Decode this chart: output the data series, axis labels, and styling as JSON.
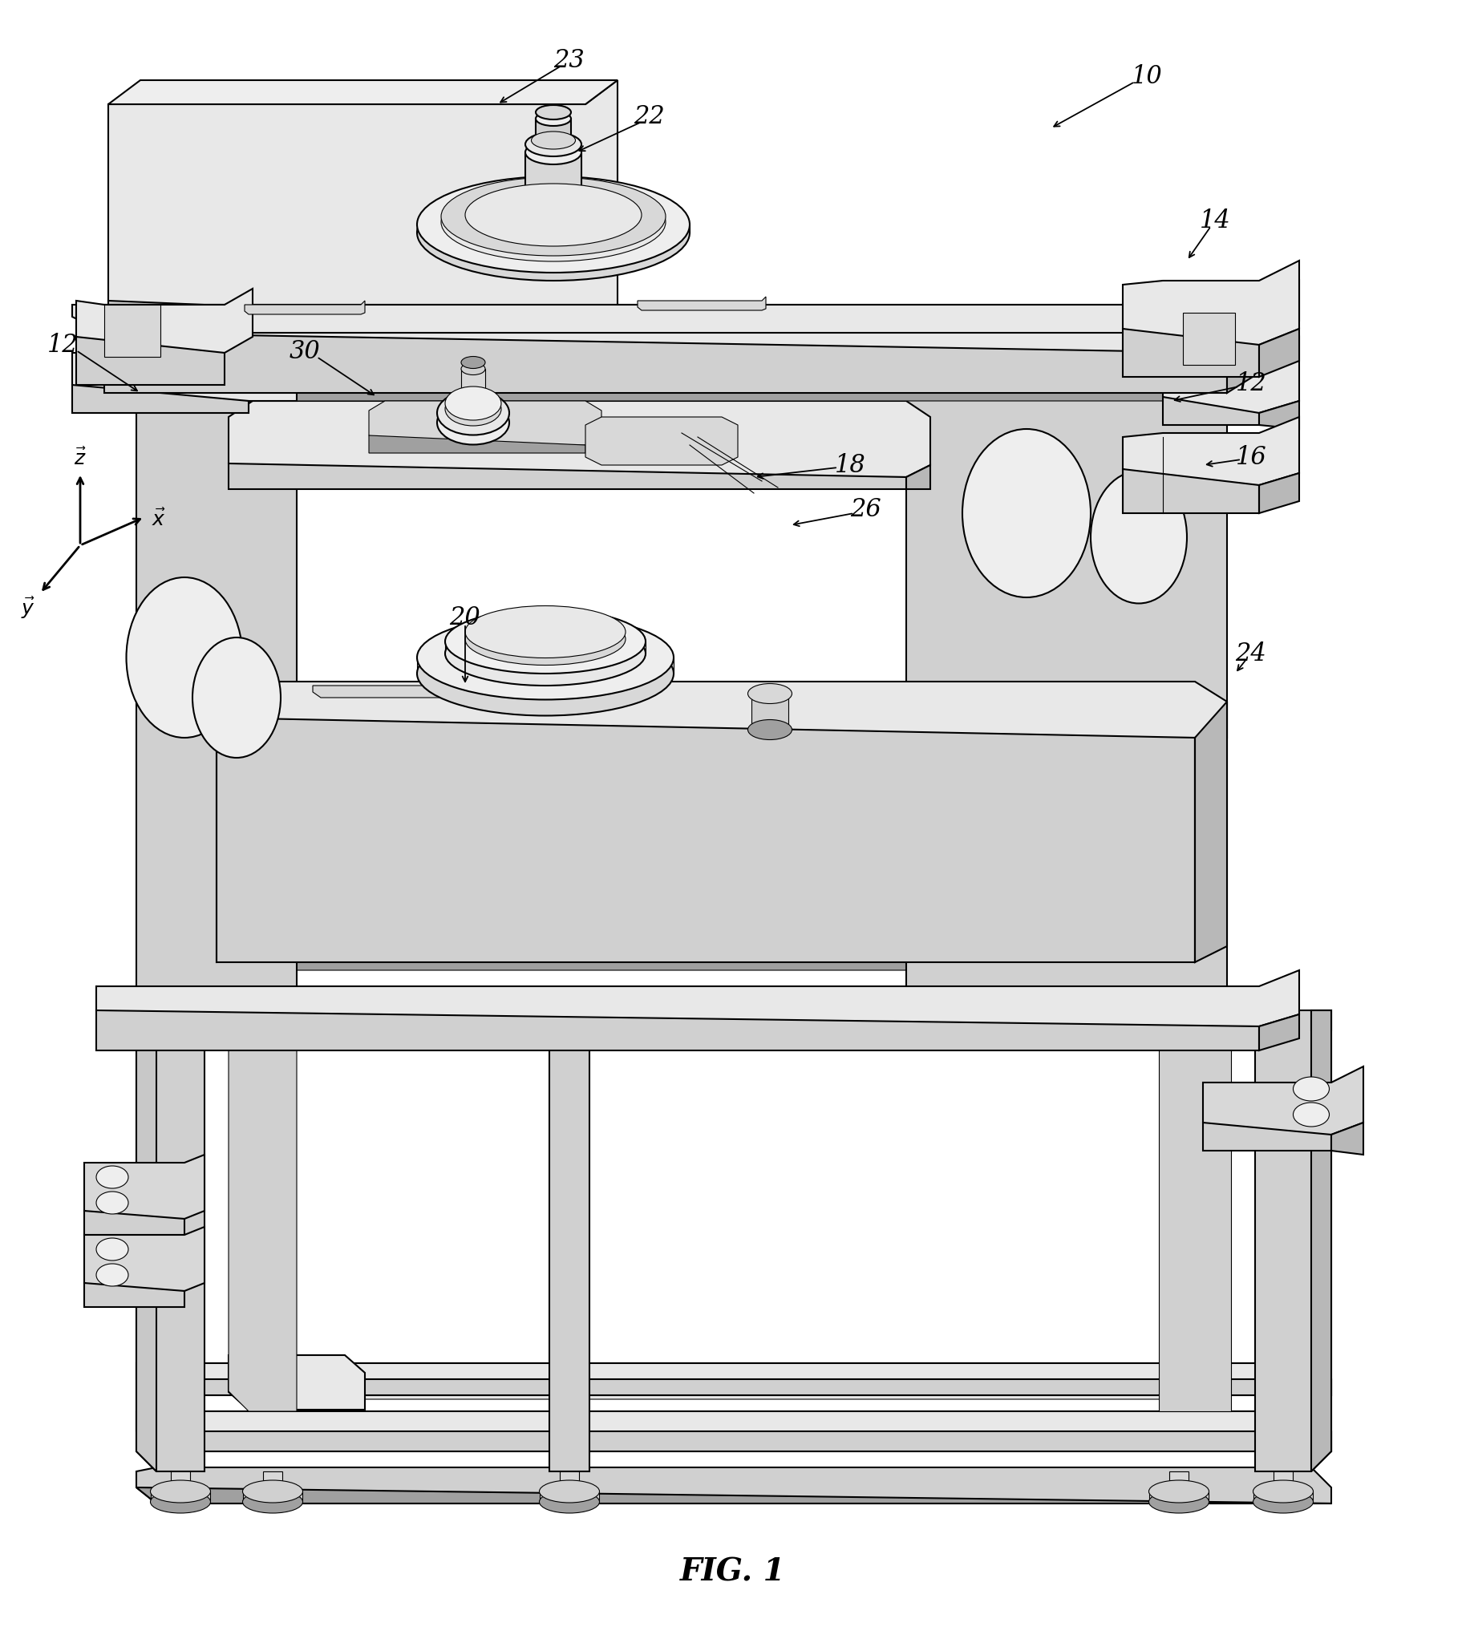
{
  "background_color": "#ffffff",
  "line_color": "#000000",
  "fig_caption": "FIG. 1",
  "fig_caption_fontsize": 28,
  "label_fontsize": 22,
  "lw_main": 1.5,
  "lw_thin": 0.8,
  "lw_thick": 2.0,
  "colors": {
    "top_face": "#e8e8e8",
    "front_face": "#d0d0d0",
    "right_face": "#b8b8b8",
    "left_face": "#c8c8c8",
    "dark_face": "#a0a0a0",
    "white": "#f8f8f8",
    "mid": "#d8d8d8",
    "light": "#eeeeee"
  }
}
